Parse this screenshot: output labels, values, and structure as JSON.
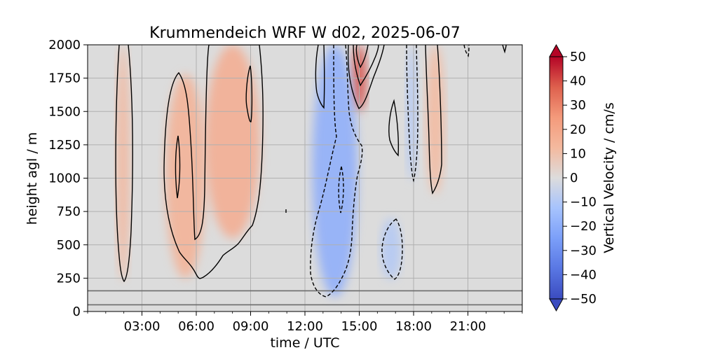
{
  "chart_data": {
    "type": "heatmap",
    "title": "Krummendeich WRF W d02, 2025-06-07",
    "xlabel": "time / UTC",
    "ylabel": "height agl / m",
    "xlim_hours": [
      0,
      24
    ],
    "ylim": [
      0,
      2000
    ],
    "x_ticks": [
      {
        "hour": 3,
        "label": "03:00"
      },
      {
        "hour": 6,
        "label": "06:00"
      },
      {
        "hour": 9,
        "label": "09:00"
      },
      {
        "hour": 12,
        "label": "12:00"
      },
      {
        "hour": 15,
        "label": "15:00"
      },
      {
        "hour": 18,
        "label": "18:00"
      },
      {
        "hour": 21,
        "label": "21:00"
      }
    ],
    "y_ticks": [
      0,
      250,
      500,
      750,
      1000,
      1250,
      1500,
      1750,
      2000
    ],
    "y_tick_labels": [
      "0",
      "250",
      "500",
      "750",
      "1000",
      "1250",
      "1500",
      "1750",
      "2000"
    ],
    "grid": true,
    "horizontal_lines_m": [
      50,
      155
    ],
    "colorbar": {
      "label": "Vertical Velocity / cm/s",
      "colormap": "coolwarm",
      "min": -50,
      "max": 50,
      "extend": "both",
      "ticks": [
        50,
        40,
        30,
        20,
        10,
        0,
        -10,
        -20,
        -30,
        -40,
        -50
      ],
      "tick_labels": [
        "50",
        "40",
        "30",
        "20",
        "10",
        "0",
        "−10",
        "−20",
        "−30",
        "−40",
        "−50"
      ]
    },
    "contour_levels_cm_s": [
      -10,
      10
    ],
    "features": [
      {
        "kind": "updraft",
        "t_hours": [
          1.6,
          2.3
        ],
        "z_m": [
          230,
          2000
        ],
        "w_cm_s": 14
      },
      {
        "kind": "updraft",
        "t_hours": [
          4.3,
          6.5
        ],
        "z_m": [
          250,
          1780
        ],
        "w_cm_s": 16
      },
      {
        "kind": "updraft",
        "t_hours": [
          6.5,
          9.5
        ],
        "z_m": [
          550,
          2000
        ],
        "w_cm_s": 18
      },
      {
        "kind": "updraft",
        "t_hours": [
          14.6,
          15.4
        ],
        "z_m": [
          1500,
          2000
        ],
        "w_cm_s": 40
      },
      {
        "kind": "updraft",
        "t_hours": [
          18.7,
          19.7
        ],
        "z_m": [
          880,
          2000
        ],
        "w_cm_s": 13
      },
      {
        "kind": "downdraft",
        "t_hours": [
          12.4,
          14.9
        ],
        "z_m": [
          110,
          2000
        ],
        "w_cm_s": -20
      },
      {
        "kind": "downdraft",
        "t_hours": [
          16.2,
          17.3
        ],
        "z_m": [
          240,
          700
        ],
        "w_cm_s": -10
      },
      {
        "kind": "downdraft",
        "t_hours": [
          17.6,
          18.2
        ],
        "z_m": [
          980,
          2000
        ],
        "w_cm_s": -10
      }
    ]
  }
}
